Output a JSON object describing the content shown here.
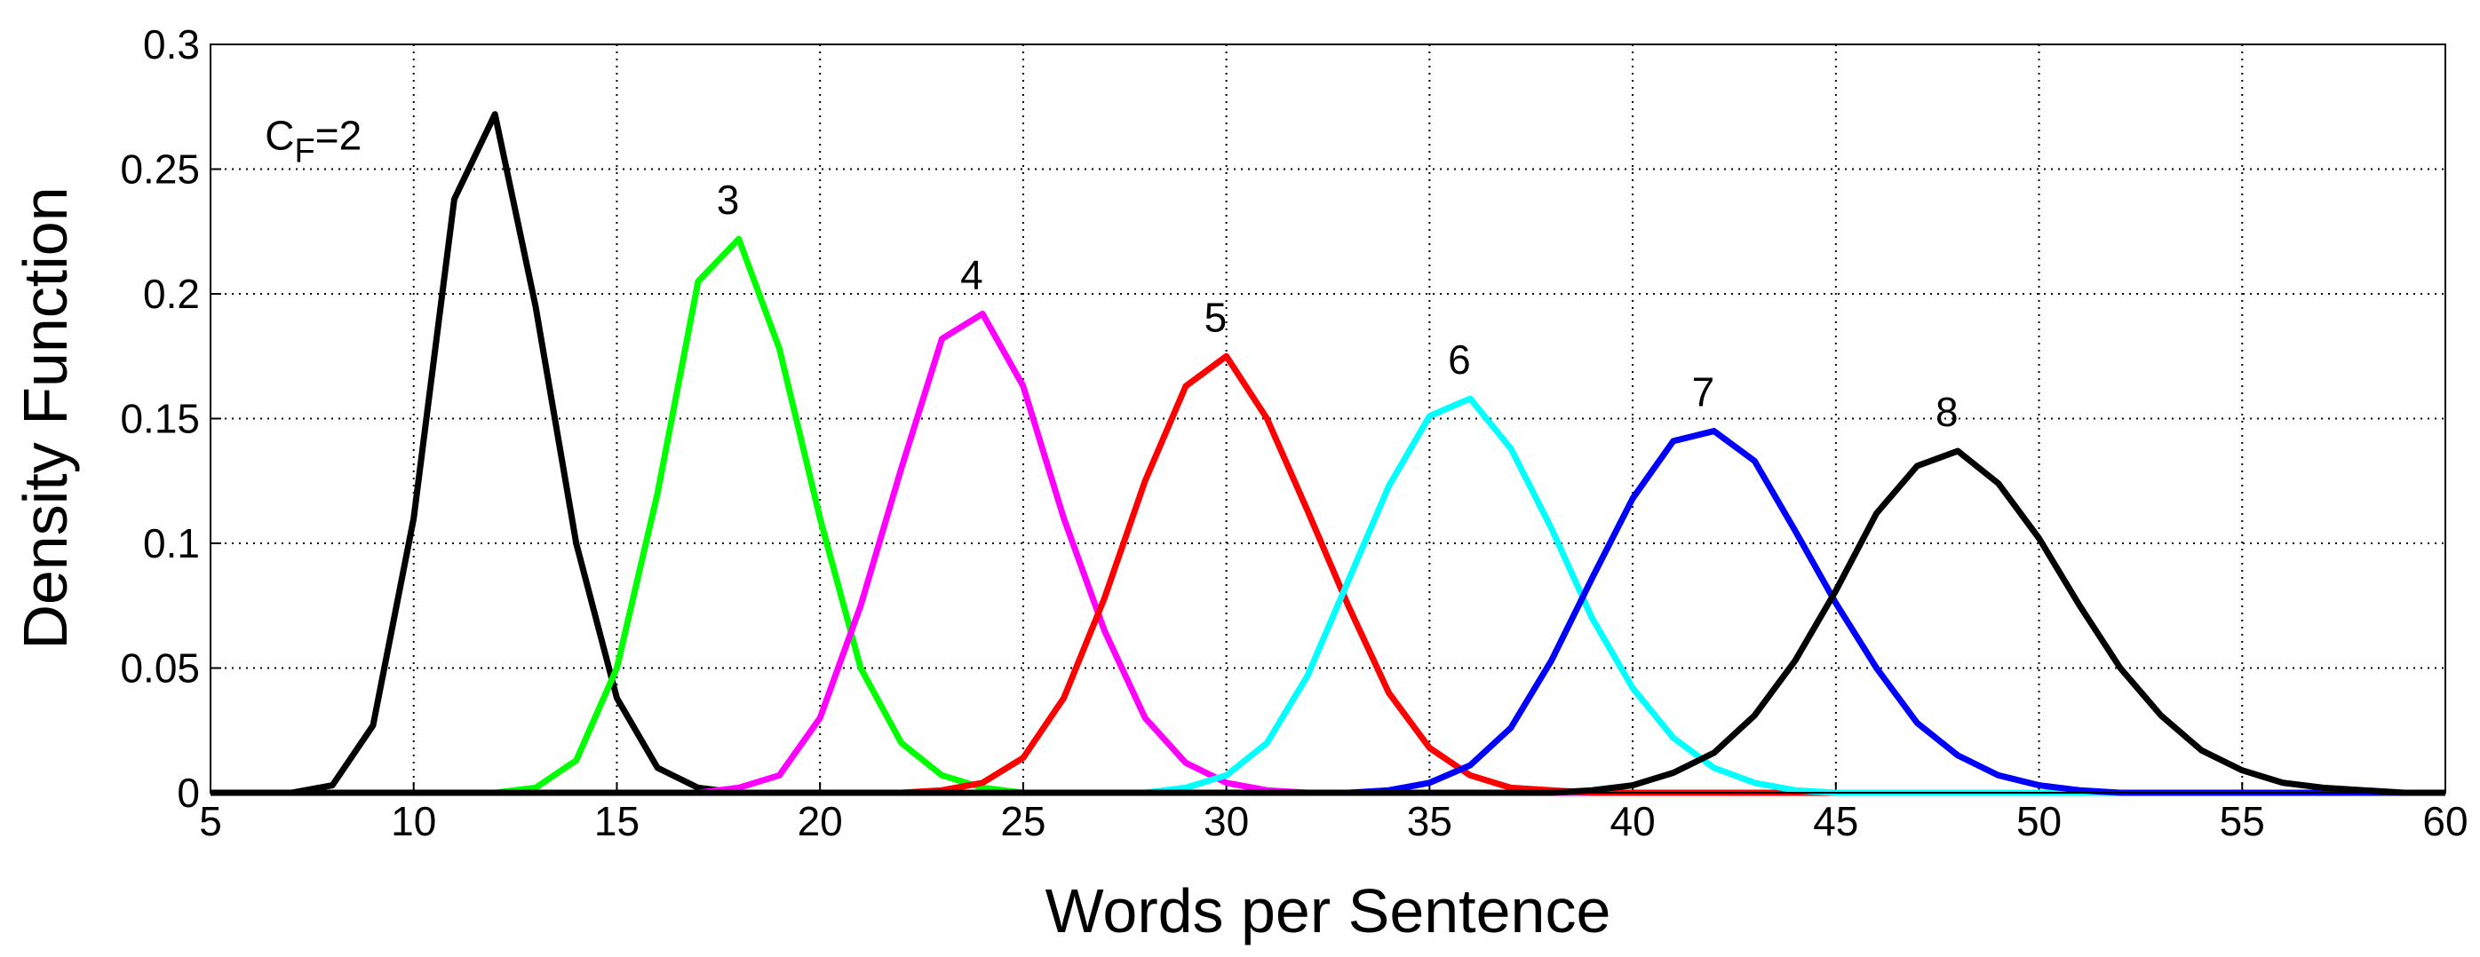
{
  "chart_data": {
    "type": "line",
    "xlabel": "Words per Sentence",
    "ylabel": "Density Function",
    "xlim": [
      5,
      60
    ],
    "xticks": [
      5,
      10,
      15,
      20,
      25,
      30,
      35,
      40,
      45,
      50,
      55,
      60
    ],
    "ylim": [
      0,
      0.3
    ],
    "yticks": [
      0,
      0.05,
      0.1,
      0.15,
      0.2,
      0.25,
      0.3
    ],
    "grid": true,
    "x": [
      5,
      6,
      7,
      8,
      9,
      10,
      11,
      12,
      13,
      14,
      15,
      16,
      17,
      18,
      19,
      20,
      21,
      22,
      23,
      24,
      25,
      26,
      27,
      28,
      29,
      30,
      31,
      32,
      33,
      34,
      35,
      36,
      37,
      38,
      39,
      40,
      41,
      42,
      43,
      44,
      45,
      46,
      47,
      48,
      49,
      50,
      51,
      52,
      53,
      54,
      55,
      56,
      57,
      58,
      59,
      60
    ],
    "series": [
      {
        "label": [
          "C",
          "F",
          "=2"
        ],
        "color": "#000000",
        "values": [
          0,
          0,
          0,
          0.003,
          0.027,
          0.11,
          0.238,
          0.272,
          0.195,
          0.1,
          0.038,
          0.01,
          0.002,
          0,
          0,
          0,
          0,
          0,
          0,
          0,
          0,
          0,
          0,
          0,
          0,
          0,
          0,
          0,
          0,
          0,
          0,
          0,
          0,
          0,
          0,
          0,
          0,
          0,
          0,
          0,
          0,
          0,
          0,
          0,
          0,
          0,
          0,
          0,
          0,
          0,
          0,
          0,
          0,
          0,
          0,
          0
        ]
      },
      {
        "label": [
          "3"
        ],
        "color": "#00ff00",
        "values": [
          0,
          0,
          0,
          0,
          0,
          0,
          0,
          0,
          0.002,
          0.013,
          0.05,
          0.12,
          0.205,
          0.222,
          0.178,
          0.11,
          0.05,
          0.02,
          0.007,
          0.002,
          0,
          0,
          0,
          0,
          0,
          0,
          0,
          0,
          0,
          0,
          0,
          0,
          0,
          0,
          0,
          0,
          0,
          0,
          0,
          0,
          0,
          0,
          0,
          0,
          0,
          0,
          0,
          0,
          0,
          0,
          0,
          0,
          0,
          0,
          0,
          0
        ]
      },
      {
        "label": [
          "4"
        ],
        "color": "#ff00ff",
        "values": [
          0,
          0,
          0,
          0,
          0,
          0,
          0,
          0,
          0,
          0,
          0,
          0,
          0,
          0.002,
          0.007,
          0.03,
          0.075,
          0.13,
          0.182,
          0.192,
          0.163,
          0.11,
          0.065,
          0.03,
          0.012,
          0.004,
          0.001,
          0,
          0,
          0,
          0,
          0,
          0,
          0,
          0,
          0,
          0,
          0,
          0,
          0,
          0,
          0,
          0,
          0,
          0,
          0,
          0,
          0,
          0,
          0,
          0,
          0,
          0,
          0,
          0,
          0
        ]
      },
      {
        "label": [
          "5"
        ],
        "color": "#ff0000",
        "values": [
          0,
          0,
          0,
          0,
          0,
          0,
          0,
          0,
          0,
          0,
          0,
          0,
          0,
          0,
          0,
          0,
          0,
          0,
          0.001,
          0.004,
          0.014,
          0.038,
          0.078,
          0.125,
          0.163,
          0.175,
          0.15,
          0.113,
          0.075,
          0.04,
          0.018,
          0.007,
          0.002,
          0.001,
          0,
          0,
          0,
          0,
          0,
          0,
          0,
          0,
          0,
          0,
          0,
          0,
          0,
          0,
          0,
          0,
          0,
          0,
          0,
          0,
          0,
          0
        ]
      },
      {
        "label": [
          "6"
        ],
        "color": "#00ffff",
        "values": [
          0,
          0,
          0,
          0,
          0,
          0,
          0,
          0,
          0,
          0,
          0,
          0,
          0,
          0,
          0,
          0,
          0,
          0,
          0,
          0,
          0,
          0,
          0,
          0,
          0.002,
          0.007,
          0.02,
          0.047,
          0.085,
          0.123,
          0.151,
          0.158,
          0.138,
          0.106,
          0.07,
          0.042,
          0.022,
          0.01,
          0.004,
          0.001,
          0,
          0,
          0,
          0,
          0,
          0,
          0,
          0,
          0,
          0,
          0,
          0,
          0,
          0,
          0,
          0
        ]
      },
      {
        "label": [
          "7"
        ],
        "color": "#0000ff",
        "values": [
          0,
          0,
          0,
          0,
          0,
          0,
          0,
          0,
          0,
          0,
          0,
          0,
          0,
          0,
          0,
          0,
          0,
          0,
          0,
          0,
          0,
          0,
          0,
          0,
          0,
          0,
          0,
          0,
          0,
          0.001,
          0.004,
          0.011,
          0.026,
          0.053,
          0.086,
          0.118,
          0.141,
          0.145,
          0.133,
          0.105,
          0.076,
          0.05,
          0.028,
          0.015,
          0.007,
          0.003,
          0.001,
          0,
          0,
          0,
          0,
          0,
          0,
          0,
          0,
          0
        ]
      },
      {
        "label": [
          "8"
        ],
        "color": "#000000",
        "values": [
          0,
          0,
          0,
          0,
          0,
          0,
          0,
          0,
          0,
          0,
          0,
          0,
          0,
          0,
          0,
          0,
          0,
          0,
          0,
          0,
          0,
          0,
          0,
          0,
          0,
          0,
          0,
          0,
          0,
          0,
          0,
          0,
          0,
          0,
          0.001,
          0.003,
          0.008,
          0.016,
          0.031,
          0.053,
          0.081,
          0.112,
          0.131,
          0.137,
          0.124,
          0.102,
          0.075,
          0.05,
          0.031,
          0.017,
          0.009,
          0.004,
          0.002,
          0.001,
          0,
          0
        ]
      }
    ]
  }
}
